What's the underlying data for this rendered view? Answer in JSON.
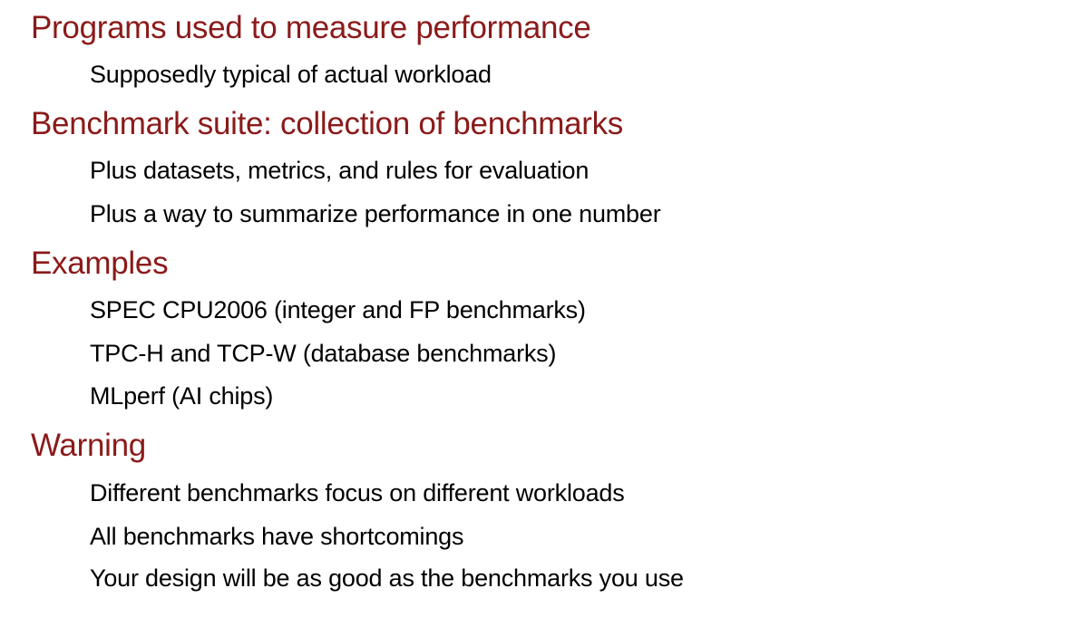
{
  "sections": [
    {
      "heading": "Programs used to measure performance",
      "items": [
        "Supposedly typical of actual workload"
      ]
    },
    {
      "heading": "Benchmark suite: collection of benchmarks",
      "items": [
        "Plus datasets, metrics, and rules for evaluation",
        "Plus a way to summarize performance in one number"
      ]
    },
    {
      "heading": "Examples",
      "items": [
        "SPEC CPU2006 (integer and FP benchmarks)",
        "TPC-H and TCP-W (database benchmarks)",
        "MLperf (AI chips)"
      ]
    },
    {
      "heading": "Warning",
      "items": [
        "Different benchmarks focus on different workloads",
        "All benchmarks have shortcomings",
        "Your design will be as good as the benchmarks you use"
      ]
    }
  ]
}
